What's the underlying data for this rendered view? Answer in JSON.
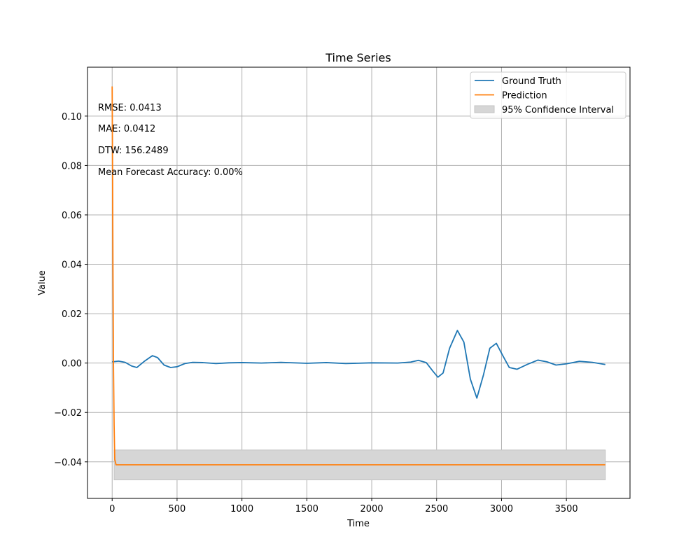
{
  "chart_data": {
    "type": "line",
    "title": "Time Series",
    "xlabel": "Time",
    "ylabel": "Value",
    "xlim": [
      -190,
      3990
    ],
    "ylim": [
      -0.0548,
      0.1198
    ],
    "xticks": [
      0,
      500,
      1000,
      1500,
      2000,
      2500,
      3000,
      3500
    ],
    "xtick_labels": [
      "0",
      "500",
      "1000",
      "1500",
      "2000",
      "2500",
      "3000",
      "3500"
    ],
    "yticks": [
      -0.04,
      -0.02,
      0.0,
      0.02,
      0.04,
      0.06,
      0.08,
      0.1
    ],
    "ytick_labels": [
      "−0.04",
      "−0.02",
      "0.00",
      "0.02",
      "0.04",
      "0.06",
      "0.08",
      "0.10"
    ],
    "grid": true,
    "legend_position": "top-right",
    "legend": [
      "Ground Truth",
      "Prediction",
      "95% Confidence Interval"
    ],
    "series": [
      {
        "name": "Ground Truth",
        "color": "#1f77b4",
        "x": [
          0,
          50,
          100,
          150,
          190,
          250,
          310,
          350,
          400,
          450,
          500,
          560,
          620,
          700,
          800,
          900,
          1000,
          1150,
          1300,
          1500,
          1650,
          1800,
          2000,
          2200,
          2300,
          2360,
          2420,
          2470,
          2510,
          2550,
          2600,
          2660,
          2710,
          2760,
          2810,
          2860,
          2910,
          2960,
          3010,
          3060,
          3120,
          3200,
          3280,
          3350,
          3420,
          3500,
          3600,
          3700,
          3800
        ],
        "y": [
          0.0005,
          0.0008,
          0.0003,
          -0.0012,
          -0.0018,
          0.0008,
          0.003,
          0.0022,
          -0.0008,
          -0.0018,
          -0.0015,
          -0.0002,
          0.0003,
          0.0002,
          -0.0002,
          0.0001,
          0.0002,
          0.0,
          0.0003,
          -0.0001,
          0.0002,
          -0.0002,
          0.0001,
          0.0,
          0.0004,
          0.0011,
          0.0002,
          -0.0032,
          -0.0057,
          -0.004,
          0.006,
          0.0132,
          0.0085,
          -0.0065,
          -0.0142,
          -0.005,
          0.006,
          0.008,
          0.003,
          -0.0018,
          -0.0025,
          -0.0005,
          0.0012,
          0.0005,
          -0.0008,
          -0.0003,
          0.0007,
          0.0003,
          -0.0006
        ]
      },
      {
        "name": "Prediction",
        "color": "#ff7f0e",
        "x": [
          0,
          3,
          6,
          10,
          15,
          20,
          30,
          3800
        ],
        "y": [
          0.112,
          0.08,
          0.04,
          0.0,
          -0.025,
          -0.039,
          -0.0412,
          -0.0412
        ]
      }
    ],
    "confidence_interval": {
      "name": "95% Confidence Interval",
      "color": "#d6d6d6",
      "x_start": 15,
      "x_end": 3800,
      "lower": -0.0473,
      "upper": -0.0352
    },
    "annotations": [
      "RMSE: 0.0413",
      "MAE: 0.0412",
      "DTW: 156.2489",
      "Mean Forecast Accuracy: 0.00%"
    ]
  }
}
